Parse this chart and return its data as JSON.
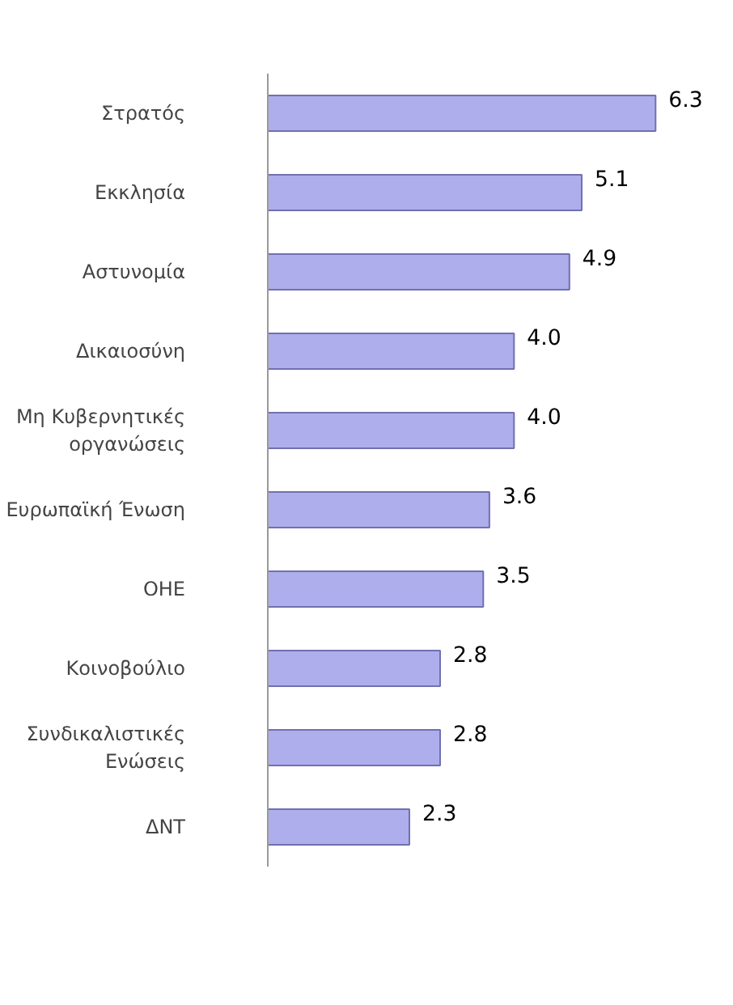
{
  "chart_data": {
    "type": "bar",
    "orientation": "horizontal",
    "categories": [
      "Στρατός",
      "Εκκλησία",
      "Αστυνομία",
      "Δικαιοσύνη",
      "Μη Κυβερνητικές\nοργανώσεις",
      "Ευρωπαϊκή Ένωση",
      "ΟΗΕ",
      "Κοινοβούλιο",
      "Συνδικαλιστικές\nΕνώσεις",
      "ΔΝΤ"
    ],
    "values": [
      6.3,
      5.1,
      4.9,
      4.0,
      4.0,
      3.6,
      3.5,
      2.8,
      2.8,
      2.3
    ],
    "color": "#aeaeec",
    "value_labels": [
      "6.3",
      "5.1",
      "4.9",
      "4.0",
      "4.0",
      "3.6",
      "3.5",
      "2.8",
      "2.8",
      "2.3"
    ]
  }
}
